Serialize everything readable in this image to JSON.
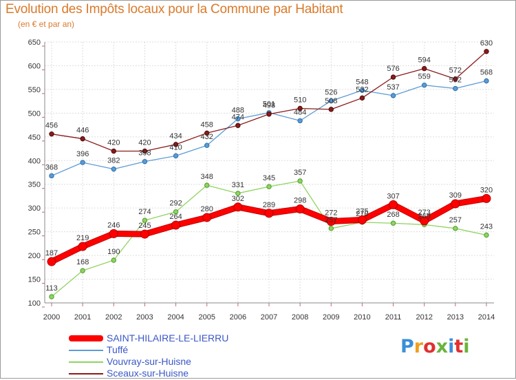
{
  "header": {
    "title": "Evolution des Impôts locaux pour la Commune par Habitant",
    "subtitle": "(en € et par an)"
  },
  "logo": {
    "text": "Proxiti",
    "letter_colors": [
      "#3b8fd8",
      "#f0a020",
      "#e03030",
      "#69b43c",
      "#3b8fd8",
      "#e03030",
      "#69b43c"
    ]
  },
  "chart_data": {
    "type": "line",
    "title": "Evolution des Impôts locaux pour la Commune par Habitant",
    "subtitle": "(en € et par an)",
    "xlabel": "",
    "ylabel": "",
    "x": [
      "2000",
      "2001",
      "2002",
      "2003",
      "2004",
      "2005",
      "2006",
      "2007",
      "2008",
      "2009",
      "2010",
      "2011",
      "2012",
      "2013",
      "2014"
    ],
    "ylim": [
      100,
      650
    ],
    "yticks": [
      100,
      150,
      200,
      250,
      300,
      350,
      400,
      450,
      500,
      550,
      600,
      650
    ],
    "grid": true,
    "legend_position": "bottom-left",
    "series": [
      {
        "name": "SAINT-HILAIRE-LE-LIERRU",
        "color": "#ff0000",
        "values": [
          187,
          219,
          246,
          245,
          264,
          280,
          302,
          289,
          298,
          272,
          275,
          307,
          273,
          309,
          320
        ]
      },
      {
        "name": "Tuffé",
        "color": "#5b9bd5",
        "values": [
          368,
          396,
          382,
          398,
          410,
          432,
          488,
          501,
          484,
          526,
          548,
          537,
          559,
          552,
          568
        ]
      },
      {
        "name": "Vouvray-sur-Huisne",
        "color": "#8fd460",
        "values": [
          113,
          168,
          190,
          274,
          292,
          348,
          331,
          345,
          357,
          257,
          270,
          268,
          265,
          257,
          243
        ]
      },
      {
        "name": "Sceaux-sur-Huisne",
        "color": "#8b1a1a",
        "values": [
          456,
          446,
          420,
          420,
          434,
          458,
          474,
          498,
          510,
          508,
          532,
          576,
          594,
          572,
          630
        ]
      }
    ]
  }
}
